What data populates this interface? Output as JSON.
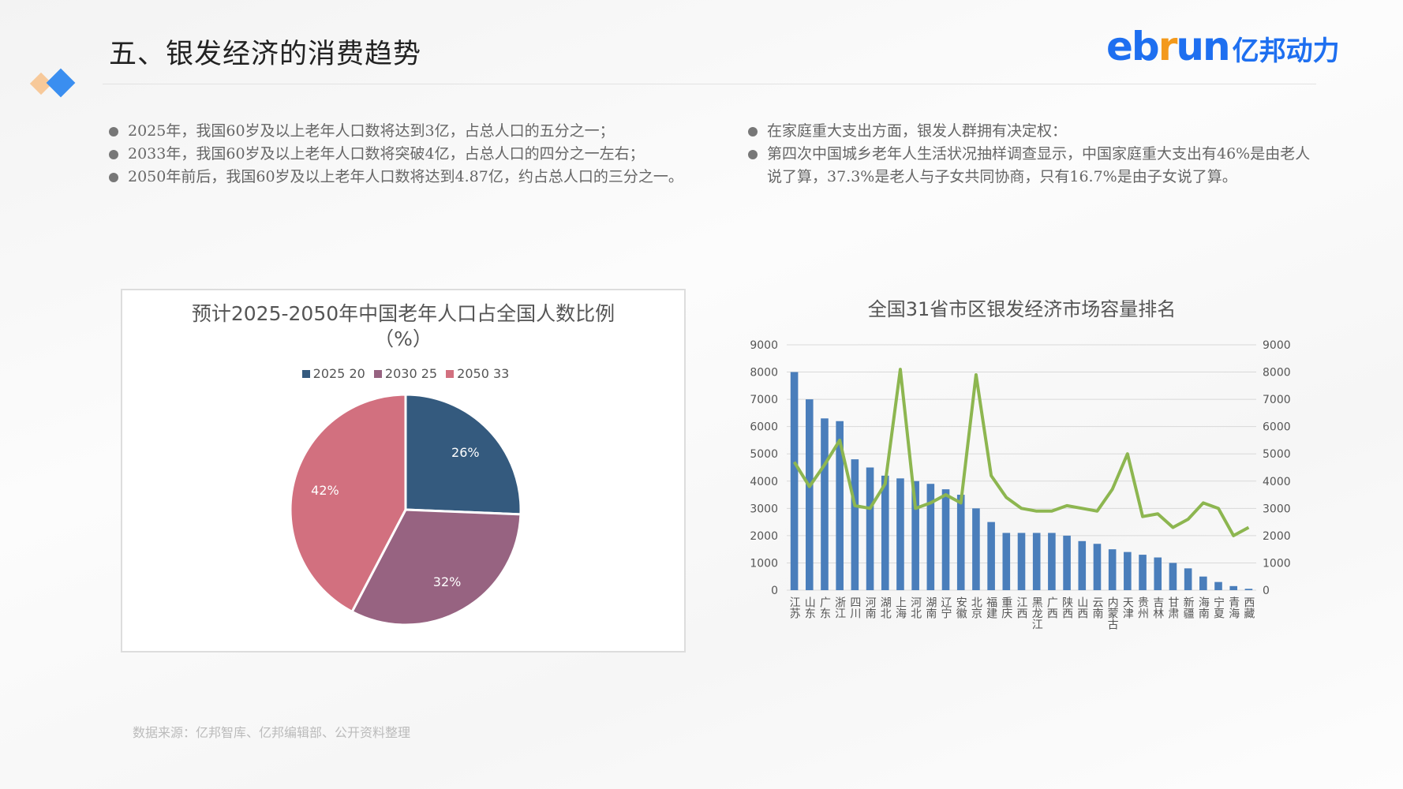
{
  "header": {
    "title": "五、银发经济的消费趋势",
    "logo_text": "ebrun亿邦动力"
  },
  "left_bullets": [
    "2025年，我国60岁及以上老年人口数将达到3亿，占总人口的五分之一；",
    "2033年，我国60岁及以上老年人口数将突破4亿，占总人口的四分之一左右；",
    "2050年前后，我国60岁及以上老年人口数将达到4.87亿，约占总人口的三分之一。"
  ],
  "right_bullets": [
    "在家庭重大支出方面，银发人群拥有决定权：",
    "第四次中国城乡老年人生活状况抽样调查显示，中国家庭重大支出有46%是由老人说了算，37.3%是老人与子女共同协商，只有16.7%是由子女说了算。"
  ],
  "footnote": "数据来源：亿邦智库、亿邦编辑部、公开资料整理",
  "chart_data": [
    {
      "type": "pie",
      "title": "预计2025-2050年中国老年人口占全国人数比例",
      "subtitle": "（%）",
      "legend": [
        "2025 20",
        "2030 25",
        "2050 33"
      ],
      "categories": [
        "2025",
        "2030",
        "2050"
      ],
      "values": [
        20,
        25,
        33
      ],
      "data_labels": [
        "26%",
        "32%",
        "42%"
      ],
      "colors": [
        "#345a7e",
        "#976381",
        "#d2707f"
      ],
      "legend_position": "top"
    },
    {
      "type": "bar",
      "title": "全国31省市区银发经济市场容量排名",
      "categories": [
        "江苏",
        "山东",
        "广东",
        "浙江",
        "四川",
        "河南",
        "湖北",
        "上海",
        "河北",
        "湖南",
        "辽宁",
        "安徽",
        "北京",
        "福建",
        "重庆",
        "江西",
        "黑龙江",
        "广西",
        "陕西",
        "山西",
        "云南",
        "内蒙古",
        "天津",
        "贵州",
        "吉林",
        "甘肃",
        "新疆",
        "海南",
        "宁夏",
        "青海",
        "西藏"
      ],
      "series": [
        {
          "name": "bar",
          "type": "bar",
          "color": "#4a7ebb",
          "values": [
            8000,
            7000,
            6300,
            6200,
            4800,
            4500,
            4200,
            4100,
            4000,
            3900,
            3700,
            3500,
            3000,
            2500,
            2100,
            2100,
            2100,
            2100,
            2000,
            1800,
            1700,
            1500,
            1400,
            1300,
            1200,
            1000,
            800,
            500,
            300,
            150,
            50
          ]
        },
        {
          "name": "line",
          "type": "line",
          "color": "#8db650",
          "values": [
            4700,
            3800,
            4600,
            5500,
            3100,
            3000,
            3900,
            8100,
            3000,
            3200,
            3500,
            3200,
            7900,
            4200,
            3400,
            3000,
            2900,
            2900,
            3100,
            3000,
            2900,
            3700,
            5000,
            2700,
            2800,
            2300,
            2600,
            3200,
            3000,
            2000,
            2300
          ]
        }
      ],
      "ylim": [
        0,
        9000
      ],
      "yticks": [
        "0",
        "1000",
        "2000",
        "3000",
        "4000",
        "5000",
        "6000",
        "7000",
        "8000",
        "9000"
      ],
      "grid": true
    }
  ]
}
